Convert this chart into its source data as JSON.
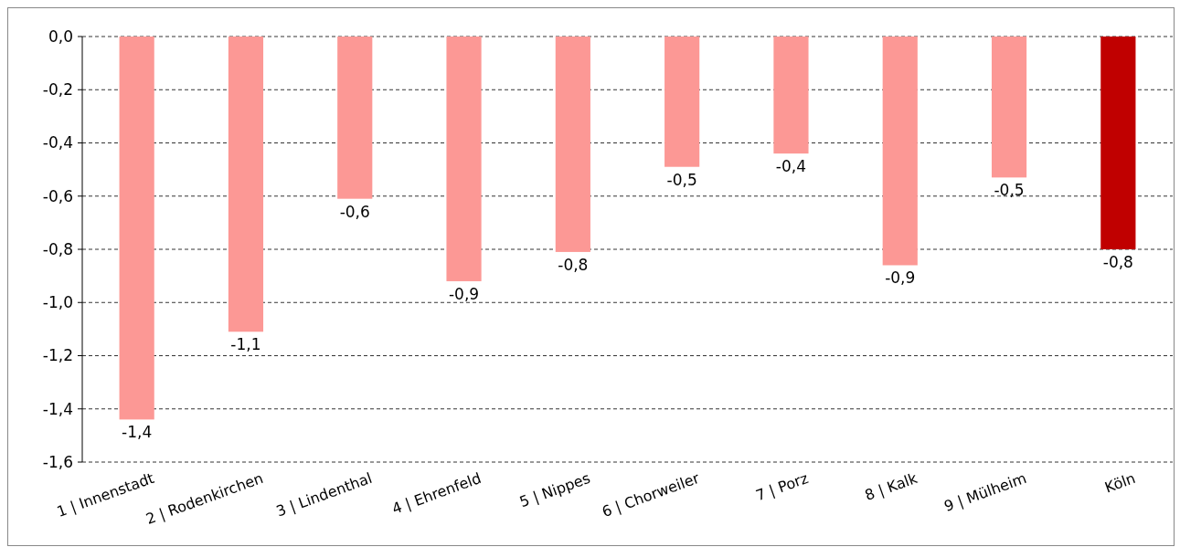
{
  "chart_data": {
    "type": "bar",
    "categories": [
      "1 | Innenstadt",
      "2 | Rodenkirchen",
      "3 | Lindenthal",
      "4 | Ehrenfeld",
      "5 | Nippes",
      "6 | Chorweiler",
      "7 | Porz",
      "8 | Kalk",
      "9 | Mülheim",
      "Köln"
    ],
    "values": [
      -1.44,
      -1.11,
      -0.61,
      -0.92,
      -0.81,
      -0.49,
      -0.44,
      -0.86,
      -0.53,
      -0.8
    ],
    "value_labels": [
      "-1,4",
      "-1,1",
      "-0,6",
      "-0,9",
      "-0,8",
      "-0,5",
      "-0,4",
      "-0,9",
      "-0,5",
      "-0,8"
    ],
    "colors": [
      "#fc9895",
      "#fc9895",
      "#fc9895",
      "#fc9895",
      "#fc9895",
      "#fc9895",
      "#fc9895",
      "#fc9895",
      "#fc9895",
      "#c00000"
    ],
    "ylim": [
      -1.6,
      0
    ],
    "yticks": [
      {
        "value": 0,
        "label": "0,0"
      },
      {
        "value": -0.2,
        "label": "-0,2"
      },
      {
        "value": -0.4,
        "label": "-0,4"
      },
      {
        "value": -0.6,
        "label": "-0,6"
      },
      {
        "value": -0.8,
        "label": "-0,8"
      },
      {
        "value": -1,
        "label": "-1,0"
      },
      {
        "value": -1.2,
        "label": "-1,2"
      },
      {
        "value": -1.4,
        "label": "-1,4"
      },
      {
        "value": -1.6,
        "label": "-1,6"
      }
    ],
    "grid": "y",
    "line_style": "dashed"
  }
}
